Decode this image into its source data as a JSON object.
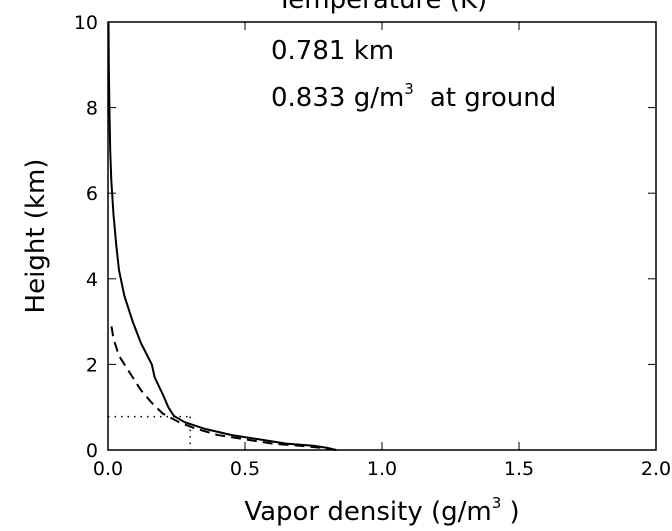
{
  "chart_data": {
    "type": "line",
    "title_partial": "Temperature (K)",
    "xlabel": "Vapor density (g/m",
    "xlabel_sup": "3",
    "xlabel_end": " )",
    "ylabel": "Height (km)",
    "xlim": [
      0.0,
      2.0
    ],
    "ylim": [
      0,
      10
    ],
    "xticks": [
      0.0,
      0.5,
      1.0,
      1.5,
      2.0
    ],
    "xtick_labels": [
      "0.0",
      "0.5",
      "1.0",
      "1.5",
      "2.0"
    ],
    "yticks": [
      0,
      2,
      4,
      6,
      8,
      10
    ],
    "ytick_labels": [
      "0",
      "2",
      "4",
      "6",
      "8",
      "10"
    ],
    "grid": false,
    "annotation_line1": "0.781 km",
    "annotation_line2_a": "0.833 g/m",
    "annotation_line2_sup": "3",
    "annotation_line2_b": "at ground",
    "series": [
      {
        "style": "solid",
        "points": [
          [
            0.833,
            0.0
          ],
          [
            0.8,
            0.05
          ],
          [
            0.75,
            0.1
          ],
          [
            0.65,
            0.15
          ],
          [
            0.55,
            0.25
          ],
          [
            0.45,
            0.35
          ],
          [
            0.35,
            0.5
          ],
          [
            0.28,
            0.65
          ],
          [
            0.24,
            0.8
          ],
          [
            0.22,
            1.0
          ],
          [
            0.2,
            1.3
          ],
          [
            0.17,
            1.7
          ],
          [
            0.16,
            2.0
          ],
          [
            0.12,
            2.5
          ],
          [
            0.09,
            3.0
          ],
          [
            0.06,
            3.6
          ],
          [
            0.04,
            4.2
          ],
          [
            0.03,
            4.8
          ],
          [
            0.02,
            5.5
          ],
          [
            0.012,
            6.3
          ],
          [
            0.008,
            7.0
          ],
          [
            0.005,
            8.0
          ],
          [
            0.003,
            9.0
          ],
          [
            0.002,
            10.0
          ]
        ]
      },
      {
        "style": "dashed",
        "points": [
          [
            0.833,
            0.0
          ],
          [
            0.78,
            0.05
          ],
          [
            0.7,
            0.1
          ],
          [
            0.6,
            0.15
          ],
          [
            0.5,
            0.25
          ],
          [
            0.4,
            0.35
          ],
          [
            0.32,
            0.5
          ],
          [
            0.26,
            0.65
          ],
          [
            0.2,
            0.85
          ],
          [
            0.16,
            1.1
          ],
          [
            0.12,
            1.4
          ],
          [
            0.08,
            1.8
          ],
          [
            0.04,
            2.2
          ],
          [
            0.02,
            2.6
          ],
          [
            0.01,
            3.0
          ]
        ]
      }
    ],
    "reference_lines": {
      "style": "dotted",
      "height_km": 0.781,
      "density": 0.3
    }
  }
}
